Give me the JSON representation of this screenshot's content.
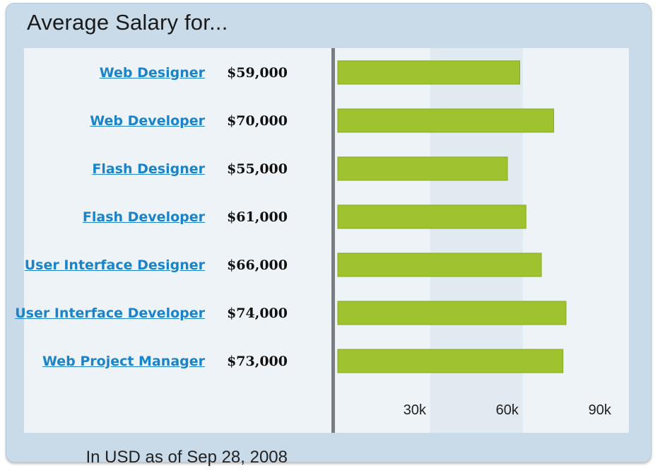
{
  "chart_data": {
    "type": "bar",
    "orientation": "horizontal",
    "title": "Average Salary for...",
    "categories": [
      "Web Designer",
      "Web Developer",
      "Flash Designer",
      "Flash Developer",
      "User Interface Designer",
      "User Interface Developer",
      "Web Project Manager"
    ],
    "values": [
      59000,
      70000,
      55000,
      61000,
      66000,
      74000,
      73000
    ],
    "value_labels": [
      "$59,000",
      "$70,000",
      "$55,000",
      "$61,000",
      "$66,000",
      "$74,000",
      "$73,000"
    ],
    "xticks": [
      30000,
      60000,
      90000
    ],
    "xtick_labels": [
      "30k",
      "60k",
      "90k"
    ],
    "xlim": [
      0,
      93000
    ],
    "footnote": "In USD as of Sep 28, 2008",
    "colors": {
      "bar": "#9ec32f",
      "bar_border": "#86aa22",
      "link": "#1a83c9",
      "axis": "#7a7d81",
      "band_light": "#eef3f8",
      "band_dark": "#e1e9f1",
      "frame": "#c9dbe9"
    }
  }
}
